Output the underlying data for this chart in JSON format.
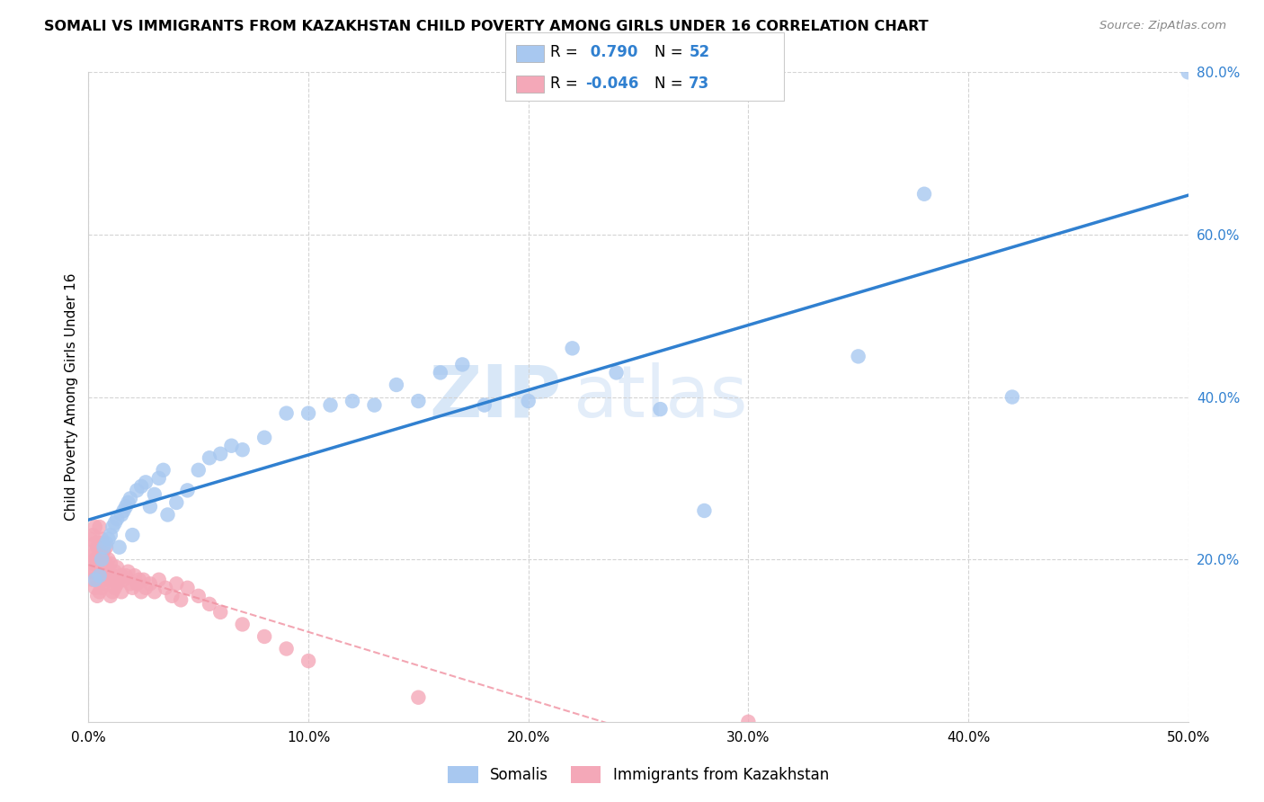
{
  "title": "SOMALI VS IMMIGRANTS FROM KAZAKHSTAN CHILD POVERTY AMONG GIRLS UNDER 16 CORRELATION CHART",
  "source": "Source: ZipAtlas.com",
  "ylabel": "Child Poverty Among Girls Under 16",
  "xlim": [
    0,
    0.5
  ],
  "ylim": [
    0,
    0.8
  ],
  "xtick_labels": [
    "0.0%",
    "10.0%",
    "20.0%",
    "30.0%",
    "40.0%",
    "50.0%"
  ],
  "xtick_vals": [
    0,
    0.1,
    0.2,
    0.3,
    0.4,
    0.5
  ],
  "ytick_labels": [
    "20.0%",
    "40.0%",
    "60.0%",
    "80.0%"
  ],
  "ytick_vals": [
    0.2,
    0.4,
    0.6,
    0.8
  ],
  "somali_color": "#a8c8f0",
  "kaz_color": "#f4a8b8",
  "somali_line_color": "#3080d0",
  "kaz_line_color": "#f090a0",
  "somali_R": 0.79,
  "somali_N": 52,
  "kaz_R": -0.046,
  "kaz_N": 73,
  "legend_label_somali": "Somalis",
  "legend_label_kaz": "Immigrants from Kazakhstan",
  "watermark_zip": "ZIP",
  "watermark_atlas": "atlas",
  "somali_x": [
    0.003,
    0.005,
    0.006,
    0.007,
    0.008,
    0.009,
    0.01,
    0.011,
    0.012,
    0.013,
    0.014,
    0.015,
    0.016,
    0.017,
    0.018,
    0.019,
    0.02,
    0.022,
    0.024,
    0.026,
    0.028,
    0.03,
    0.032,
    0.034,
    0.036,
    0.04,
    0.045,
    0.05,
    0.055,
    0.06,
    0.065,
    0.07,
    0.08,
    0.09,
    0.1,
    0.11,
    0.12,
    0.13,
    0.14,
    0.15,
    0.16,
    0.17,
    0.18,
    0.2,
    0.22,
    0.24,
    0.26,
    0.28,
    0.35,
    0.38,
    0.42,
    0.5
  ],
  "somali_y": [
    0.175,
    0.18,
    0.2,
    0.215,
    0.22,
    0.225,
    0.23,
    0.24,
    0.245,
    0.25,
    0.215,
    0.255,
    0.26,
    0.265,
    0.27,
    0.275,
    0.23,
    0.285,
    0.29,
    0.295,
    0.265,
    0.28,
    0.3,
    0.31,
    0.255,
    0.27,
    0.285,
    0.31,
    0.325,
    0.33,
    0.34,
    0.335,
    0.35,
    0.38,
    0.38,
    0.39,
    0.395,
    0.39,
    0.415,
    0.395,
    0.43,
    0.44,
    0.39,
    0.395,
    0.46,
    0.43,
    0.385,
    0.26,
    0.45,
    0.65,
    0.4,
    0.8
  ],
  "kaz_x": [
    0.001,
    0.001,
    0.001,
    0.002,
    0.002,
    0.002,
    0.002,
    0.003,
    0.003,
    0.003,
    0.003,
    0.003,
    0.004,
    0.004,
    0.004,
    0.004,
    0.005,
    0.005,
    0.005,
    0.005,
    0.005,
    0.006,
    0.006,
    0.006,
    0.006,
    0.007,
    0.007,
    0.007,
    0.008,
    0.008,
    0.008,
    0.009,
    0.009,
    0.01,
    0.01,
    0.01,
    0.011,
    0.011,
    0.012,
    0.012,
    0.013,
    0.013,
    0.014,
    0.015,
    0.015,
    0.016,
    0.017,
    0.018,
    0.019,
    0.02,
    0.021,
    0.022,
    0.023,
    0.024,
    0.025,
    0.026,
    0.028,
    0.03,
    0.032,
    0.035,
    0.038,
    0.04,
    0.042,
    0.045,
    0.05,
    0.055,
    0.06,
    0.07,
    0.08,
    0.09,
    0.1,
    0.15,
    0.3
  ],
  "kaz_y": [
    0.185,
    0.205,
    0.225,
    0.175,
    0.195,
    0.21,
    0.23,
    0.165,
    0.185,
    0.2,
    0.22,
    0.24,
    0.155,
    0.175,
    0.195,
    0.215,
    0.16,
    0.18,
    0.2,
    0.22,
    0.24,
    0.165,
    0.185,
    0.205,
    0.225,
    0.17,
    0.19,
    0.21,
    0.175,
    0.195,
    0.215,
    0.18,
    0.2,
    0.155,
    0.175,
    0.195,
    0.16,
    0.18,
    0.165,
    0.185,
    0.17,
    0.19,
    0.175,
    0.16,
    0.18,
    0.175,
    0.18,
    0.185,
    0.17,
    0.165,
    0.18,
    0.17,
    0.175,
    0.16,
    0.175,
    0.165,
    0.17,
    0.16,
    0.175,
    0.165,
    0.155,
    0.17,
    0.15,
    0.165,
    0.155,
    0.145,
    0.135,
    0.12,
    0.105,
    0.09,
    0.075,
    0.03,
    0.0
  ],
  "grid_color": "#d0d0d0",
  "tick_color": "#3080d0"
}
